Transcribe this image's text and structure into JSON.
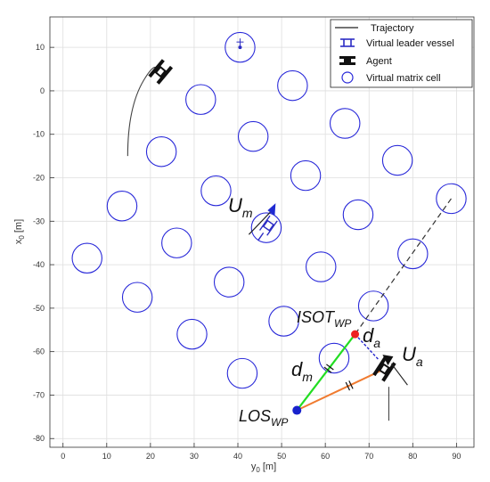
{
  "chart_data": {
    "type": "scatter",
    "xlabel_main": "y",
    "xlabel_sub": "0",
    "xlabel_unit": " [m]",
    "ylabel_main": "x",
    "ylabel_sub": "0",
    "ylabel_unit": " [m]",
    "xlim": [
      -3,
      94
    ],
    "ylim": [
      -82,
      17
    ],
    "grid": true,
    "x_ticks": [
      0,
      10,
      20,
      30,
      40,
      50,
      60,
      70,
      80,
      90
    ],
    "y_ticks": [
      10,
      0,
      -10,
      -20,
      -30,
      -40,
      -50,
      -60,
      -70,
      -80
    ],
    "cell_radius": 3.4,
    "cells": [
      {
        "y0": 40.5,
        "x0": 10
      },
      {
        "y0": 31.5,
        "x0": -2
      },
      {
        "y0": 52.5,
        "x0": 1.2
      },
      {
        "y0": 43.5,
        "x0": -10.5
      },
      {
        "y0": 64.5,
        "x0": -7.5
      },
      {
        "y0": 22.5,
        "x0": -14
      },
      {
        "y0": 76.5,
        "x0": -16
      },
      {
        "y0": 55.5,
        "x0": -19.5
      },
      {
        "y0": 35,
        "x0": -23
      },
      {
        "y0": 88.8,
        "x0": -24.8
      },
      {
        "y0": 13.5,
        "x0": -26.5
      },
      {
        "y0": 67.5,
        "x0": -28.5
      },
      {
        "y0": 46.5,
        "x0": -31.5
      },
      {
        "y0": 26,
        "x0": -35
      },
      {
        "y0": 80,
        "x0": -37.5
      },
      {
        "y0": 5.5,
        "x0": -38.5
      },
      {
        "y0": 59,
        "x0": -40.5
      },
      {
        "y0": 38,
        "x0": -44
      },
      {
        "y0": 17,
        "x0": -47.5
      },
      {
        "y0": 71,
        "x0": -49.5
      },
      {
        "y0": 50.5,
        "x0": -53
      },
      {
        "y0": 29.5,
        "x0": -56
      },
      {
        "y0": 62,
        "x0": -61.5
      },
      {
        "y0": 41,
        "x0": -65
      }
    ],
    "trajectory": [
      [
        14.8,
        -15
      ],
      [
        14.8,
        -8
      ],
      [
        15.8,
        -2
      ],
      [
        18.5,
        2.5
      ],
      [
        21.5,
        5
      ]
    ],
    "los_wp": {
      "y0": 53.5,
      "x0": -73.5
    },
    "isot_wp": {
      "y0": 66.8,
      "x0": -56
    },
    "agent": {
      "y0": 73.5,
      "x0": -64
    },
    "leader": {
      "y0": 47,
      "x0": -31
    },
    "dashed_line": [
      [
        88.8,
        -24.8
      ],
      [
        66.8,
        -56
      ]
    ],
    "labels": {
      "Um_main": "U",
      "Um_sub": "m",
      "Ua_main": "U",
      "Ua_sub": "a",
      "dm_main": "d",
      "dm_sub": "m",
      "da_main": "d",
      "da_sub": "a",
      "isot_main": "ISOT",
      "isot_sub": "WP",
      "los_main": "LOS",
      "los_sub": "WP"
    },
    "legend": {
      "placement": "top-right",
      "entries": [
        "Trajectory",
        "Virtual leader vessel",
        "Agent",
        "Virtual matrix cell"
      ]
    },
    "colors": {
      "cell": "#2929d9",
      "leader": "#2c2cc4",
      "trajectory": "#444444",
      "green": "#22dd22",
      "orange": "#f07b30",
      "red": "#ee2222",
      "blue_dot": "#1822cc"
    }
  }
}
